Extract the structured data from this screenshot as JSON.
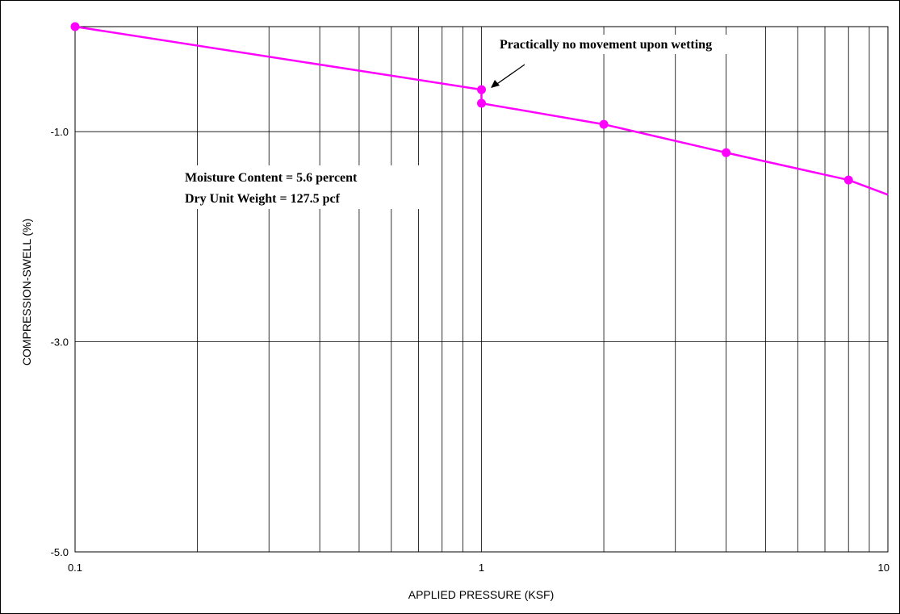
{
  "chart_data": {
    "type": "line",
    "xlabel": "APPLIED PRESSURE (KSF)",
    "ylabel": "COMPRESSION-SWELL (%)",
    "x_scale": "log",
    "xlim": [
      0.1,
      10
    ],
    "ylim": [
      -5.0,
      0.0
    ],
    "x_tick_labels": [
      "0.1",
      "1",
      "10"
    ],
    "x_tick_values": [
      0.1,
      1,
      10
    ],
    "y_tick_labels": [
      "-1.0",
      "-3.0",
      "-5.0"
    ],
    "y_tick_values": [
      -1.0,
      -3.0,
      -5.0
    ],
    "grid": true,
    "series": [
      {
        "color": "#ff00ff",
        "points": [
          {
            "x": 0.1,
            "y": 0.0
          },
          {
            "x": 1.0,
            "y": -0.6
          },
          {
            "x": 1.0,
            "y": -0.73
          },
          {
            "x": 2.0,
            "y": -0.93
          },
          {
            "x": 4.0,
            "y": -1.2
          },
          {
            "x": 8.0,
            "y": -1.46
          },
          {
            "x": 10.0,
            "y": -1.6
          }
        ],
        "markers": [
          {
            "x": 0.1,
            "y": 0.0
          },
          {
            "x": 1.0,
            "y": -0.6
          },
          {
            "x": 1.0,
            "y": -0.73
          },
          {
            "x": 2.0,
            "y": -0.93
          },
          {
            "x": 4.0,
            "y": -1.2
          },
          {
            "x": 8.0,
            "y": -1.46
          }
        ]
      }
    ],
    "annotations": {
      "wetting_note": "Practically no movement upon wetting",
      "moisture_line": "Moisture Content =  5.6 percent",
      "unit_weight_line": "Dry Unit Weight =  127.5 pcf"
    }
  }
}
